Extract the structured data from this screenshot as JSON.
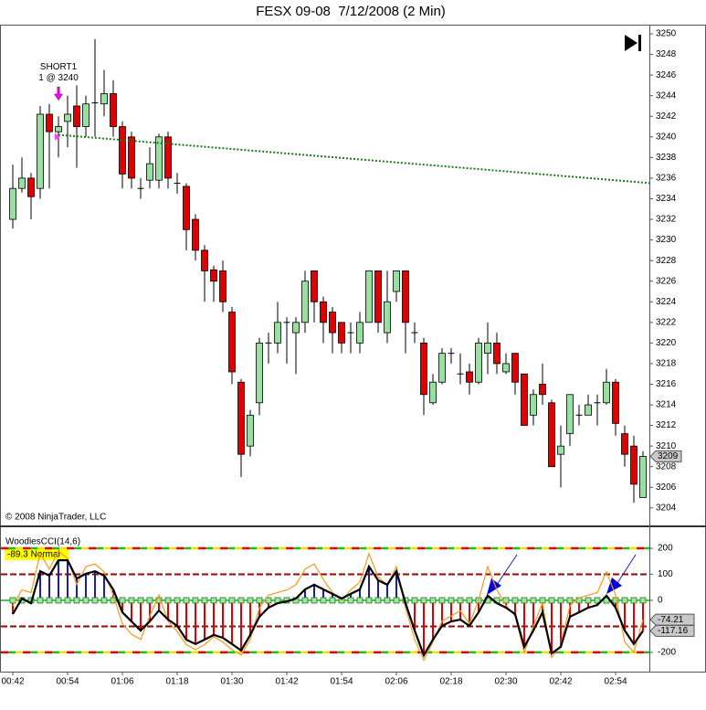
{
  "chart_data": [
    {
      "type": "candlestick",
      "title": "FESX 09-08  7/12/2008 (2 Min)",
      "categories": [
        "00:42",
        null,
        null,
        null,
        null,
        null,
        "00:54",
        null,
        null,
        null,
        null,
        null,
        "01:06",
        null,
        null,
        null,
        null,
        null,
        "01:18",
        null,
        null,
        null,
        null,
        null,
        "01:30",
        null,
        null,
        null,
        null,
        null,
        "01:42",
        null,
        null,
        null,
        null,
        null,
        "01:54",
        null,
        null,
        null,
        null,
        null,
        "02:06",
        null,
        null,
        null,
        null,
        null,
        "02:18",
        null,
        null,
        null,
        null,
        null,
        "02:30",
        null,
        null,
        null,
        null,
        null,
        "02:42",
        null,
        null,
        null,
        null,
        null,
        "02:54",
        null,
        null,
        null
      ],
      "open": [
        3232,
        3235,
        3236,
        3235,
        3242.2,
        3240.5,
        3241.5,
        3243,
        3241,
        3243.3,
        3243.2,
        3244.2,
        3241,
        3240,
        3235,
        3235.8,
        3235.8,
        3240,
        3235.5,
        3235.2,
        3232,
        3229,
        3227.1,
        3227,
        3223,
        3216.2,
        3210,
        3214.2,
        3220,
        3220,
        3222,
        3221,
        3222,
        3227,
        3224,
        3223,
        3222,
        3221,
        3220,
        3222,
        3227,
        3221,
        3225,
        3227,
        3221,
        3220,
        3214.2,
        3216.2,
        3219,
        3217,
        3217.2,
        3216.2,
        3219,
        3220,
        3217.2,
        3219,
        3217,
        3213,
        3216,
        3214.2,
        3209.2,
        3211.2,
        3213,
        3213,
        3214.2,
        3214.2,
        3216.2,
        3211.2,
        3210,
        3205
      ],
      "high": [
        3237.3,
        3238,
        3236.5,
        3243,
        3243.2,
        3242,
        3244,
        3245,
        3244,
        3249.5,
        3246.5,
        3245.5,
        3241.5,
        3240.5,
        3236,
        3239,
        3240.3,
        3240.5,
        3236.5,
        3235.5,
        3232.5,
        3229.5,
        3227.5,
        3228,
        3223.5,
        3216.5,
        3213.5,
        3220.5,
        3221,
        3224,
        3222.5,
        3222.5,
        3227,
        3227,
        3224.5,
        3223.5,
        3222,
        3222,
        3223,
        3227,
        3227,
        3227,
        3227,
        3227,
        3222,
        3220.5,
        3217,
        3219.5,
        3219.5,
        3219,
        3218,
        3220.5,
        3222,
        3221,
        3219,
        3219,
        3217,
        3215.5,
        3218,
        3214.5,
        3212,
        3215,
        3214,
        3215,
        3215,
        3217.5,
        3216.5,
        3212,
        3211,
        3209.5
      ],
      "low": [
        3231.1,
        3234.6,
        3232,
        3234,
        3235,
        3238,
        3239,
        3237,
        3240,
        3240,
        3242,
        3240,
        3235,
        3235,
        3234,
        3235,
        3235,
        3235,
        3234.5,
        3229,
        3228,
        3224,
        3224,
        3223,
        3216,
        3207,
        3209,
        3213,
        3218,
        3219,
        3218,
        3217,
        3221,
        3222,
        3220,
        3219,
        3219,
        3219,
        3219,
        3222,
        3221,
        3220,
        3224,
        3219,
        3220,
        3213,
        3214,
        3216,
        3218,
        3216,
        3215,
        3216,
        3217,
        3217,
        3217,
        3215,
        3212,
        3212,
        3214,
        3208,
        3206,
        3210,
        3212,
        3213,
        3212,
        3214,
        3211,
        3208,
        3204.5,
        3205
      ],
      "close": [
        3235,
        3236,
        3234.2,
        3242.2,
        3240.5,
        3241,
        3242.2,
        3241,
        3243.2,
        3243.3,
        3244.2,
        3241,
        3236.4,
        3236,
        3235,
        3237.4,
        3240,
        3236,
        3235.5,
        3231,
        3229,
        3227,
        3226,
        3224,
        3217.2,
        3209.2,
        3213,
        3220,
        3220,
        3222,
        3222,
        3222,
        3226,
        3224,
        3222,
        3221,
        3220,
        3221,
        3222,
        3227,
        3222,
        3224,
        3227,
        3222,
        3221,
        3215,
        3216.2,
        3219,
        3219,
        3217,
        3216.2,
        3220,
        3220,
        3218,
        3218,
        3216.2,
        3212,
        3215,
        3215,
        3208,
        3210,
        3215,
        3213,
        3214,
        3214.2,
        3216.2,
        3212.2,
        3209.2,
        3206.3,
        3209
      ],
      "up_color": "#98e0a0",
      "down_color": "#e00000",
      "ylim": [
        3202.3,
        3250.8
      ],
      "yticks": [
        3204,
        3206,
        3208,
        3210,
        3212,
        3214,
        3216,
        3218,
        3220,
        3222,
        3224,
        3226,
        3228,
        3230,
        3232,
        3234,
        3236,
        3238,
        3240,
        3242,
        3244,
        3246,
        3248,
        3250
      ],
      "last_price": 3209,
      "order": {
        "name": "SHORT1",
        "label": "1 @ 3240",
        "index": 5,
        "price": 3240
      },
      "trendline": {
        "start_index": 5,
        "start_value": 3240.2,
        "end_index": 70,
        "end_value": 3235.5,
        "color": "#1a7a1a"
      },
      "copyright": "© 2008 NinjaTrader, LLC"
    },
    {
      "type": "line",
      "title": "WoodiesCCI(14,6)",
      "status_label": "-89.3 Normal",
      "series": [
        {
          "color": "#000000",
          "values": [
            -53,
            7,
            -11,
            112,
            95,
            154,
            154,
            84,
            102,
            112,
            95,
            42,
            -46,
            -81,
            -116,
            -81,
            -39,
            -74,
            -98,
            -151,
            -168,
            -151,
            -133,
            -144,
            -168,
            -193,
            -133,
            -63,
            -28,
            -11,
            -4,
            7,
            42,
            60,
            42,
            25,
            7,
            25,
            42,
            130,
            77,
            60,
            112,
            -11,
            -116,
            -211,
            -151,
            -98,
            -81,
            -74,
            -98,
            -46,
            18,
            -11,
            -28,
            -53,
            -179,
            -116,
            -46,
            -204,
            -179,
            -63,
            -46,
            -28,
            -18,
            18,
            -28,
            -116,
            -168,
            -117.16
          ]
        },
        {
          "color": "#f59a1a",
          "values": [
            -20,
            40,
            30,
            180,
            120,
            190,
            160,
            60,
            130,
            140,
            110,
            20,
            -90,
            -130,
            -150,
            -60,
            20,
            -80,
            -120,
            -170,
            -190,
            -170,
            -140,
            -160,
            -190,
            -210,
            -150,
            -30,
            20,
            30,
            40,
            60,
            120,
            140,
            80,
            30,
            0,
            40,
            70,
            180,
            90,
            60,
            130,
            -30,
            -150,
            -230,
            -160,
            -80,
            -60,
            -40,
            -90,
            0,
            130,
            40,
            -20,
            -60,
            -200,
            -100,
            -10,
            -220,
            -170,
            -20,
            10,
            20,
            30,
            110,
            20,
            -160,
            -200,
            -74.21
          ]
        }
      ],
      "ylim": [
        -274,
        281
      ],
      "yticks": [
        200,
        100,
        0,
        -200
      ],
      "levels": [
        200,
        100,
        0,
        -100,
        -200
      ]
    }
  ]
}
